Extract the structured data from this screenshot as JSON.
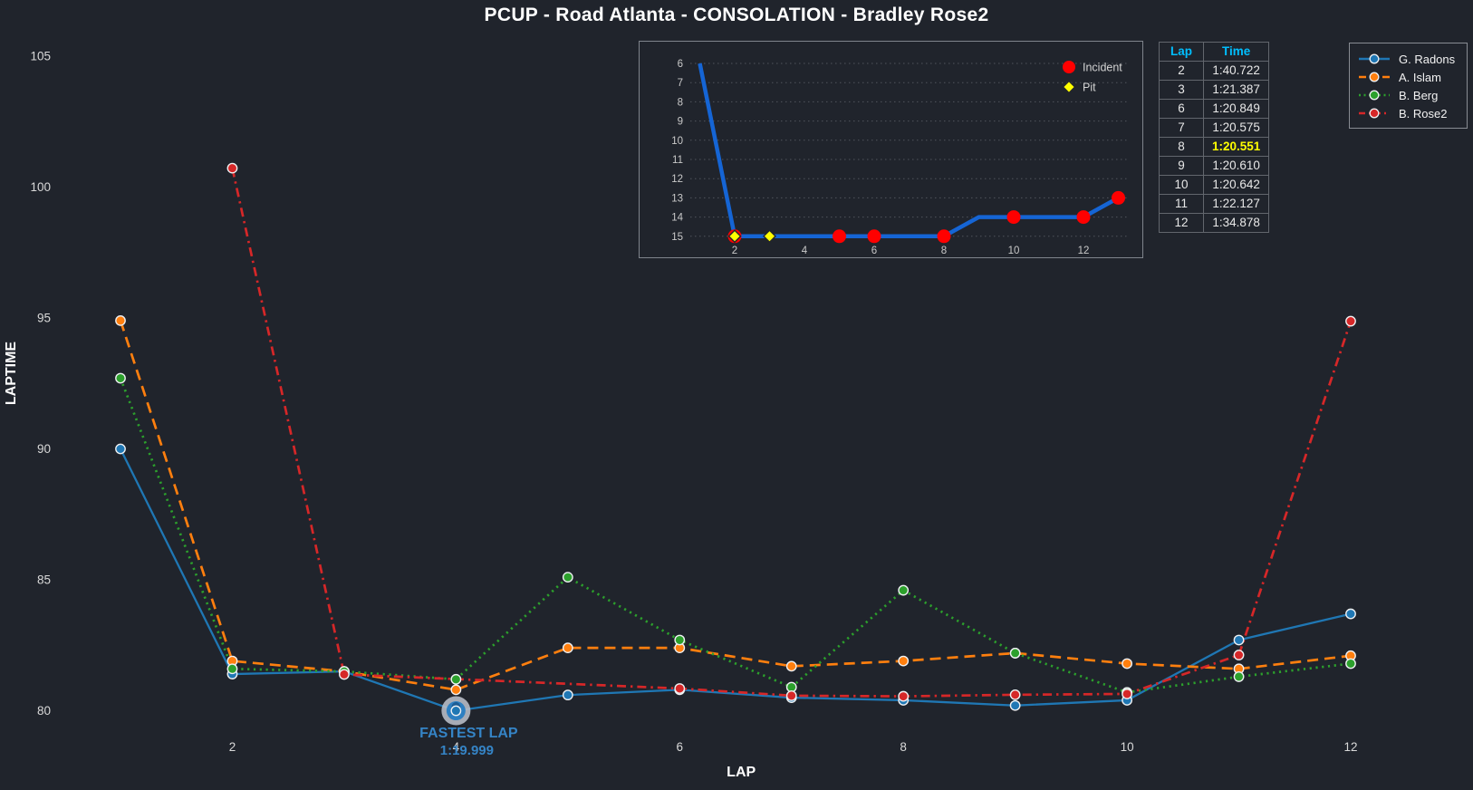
{
  "title": "PCUP - Road Atlanta - CONSOLATION - Bradley Rose2",
  "colors": {
    "background": "#20242c",
    "tick_text": "#d9d9d9",
    "incident": "#ff0000",
    "pit": "#ffff00",
    "table_header": "#00bfff",
    "fastest_highlight": "#ffff00",
    "annotation_blue": "#3584c6"
  },
  "chart_data": [
    {
      "id": "main_laptime_chart",
      "type": "line",
      "title": "PCUP - Road Atlanta - CONSOLATION - Bradley Rose2",
      "xlabel": "LAP",
      "ylabel": "LAPTIME",
      "xticks": [
        2,
        4,
        6,
        8,
        10,
        12
      ],
      "yticks": [
        80,
        85,
        90,
        95,
        100,
        105
      ],
      "xlim": [
        0.45,
        12.6
      ],
      "ylim": [
        79,
        106.2
      ],
      "grid": false,
      "legend_position": "outside-top-right",
      "series": [
        {
          "name": "G. Radons",
          "color": "#1f77b4",
          "line_style": "solid",
          "x": [
            1,
            2,
            3,
            4,
            5,
            6,
            7,
            8,
            9,
            10,
            11,
            12
          ],
          "values": [
            90.0,
            81.4,
            81.5,
            79.999,
            80.6,
            80.8,
            80.5,
            80.4,
            80.2,
            80.4,
            82.7,
            83.7
          ]
        },
        {
          "name": "A. Islam",
          "color": "#ff7f0e",
          "line_style": "dashed",
          "x": [
            1,
            2,
            3,
            4,
            5,
            6,
            7,
            8,
            9,
            10,
            11,
            12
          ],
          "values": [
            94.9,
            81.9,
            81.5,
            80.8,
            82.4,
            82.4,
            81.7,
            81.9,
            82.2,
            81.8,
            81.6,
            82.1
          ]
        },
        {
          "name": "B. Berg",
          "color": "#2ca02c",
          "line_style": "dotted",
          "x": [
            1,
            2,
            3,
            4,
            5,
            6,
            7,
            8,
            9,
            10,
            11,
            12
          ],
          "values": [
            92.7,
            81.6,
            81.5,
            81.2,
            85.1,
            82.7,
            80.9,
            84.6,
            82.2,
            80.7,
            81.3,
            81.8
          ]
        },
        {
          "name": "B. Rose2",
          "color": "#d62728",
          "line_style": "dashdot",
          "x": [
            2,
            3,
            6,
            7,
            8,
            9,
            10,
            11,
            12
          ],
          "values": [
            100.722,
            81.387,
            80.849,
            80.575,
            80.551,
            80.61,
            80.642,
            82.127,
            94.878
          ]
        }
      ],
      "annotation": {
        "line1": "FASTEST LAP",
        "line2": "1:19.999",
        "x": 4,
        "y": 79.999,
        "color": "#3584c6"
      }
    },
    {
      "id": "position_inset_chart",
      "type": "line",
      "xticks": [
        2,
        4,
        6,
        8,
        10,
        12
      ],
      "yticks": [
        6,
        7,
        8,
        9,
        10,
        11,
        12,
        13,
        14,
        15
      ],
      "y_inverted": true,
      "grid": "horizontal-dotted",
      "series": [
        {
          "name": "Position",
          "color": "#1565d5",
          "x": [
            1,
            2,
            3,
            4,
            5,
            6,
            7,
            8,
            9,
            10,
            11,
            12,
            13
          ],
          "values": [
            6,
            15,
            15,
            15,
            15,
            15,
            15,
            15,
            14,
            14,
            14,
            14,
            13
          ]
        }
      ],
      "event_markers": {
        "incident": {
          "label": "Incident",
          "color": "#ff0000",
          "shape": "circle",
          "laps": [
            2,
            5,
            6,
            8,
            10,
            12,
            13
          ]
        },
        "pit": {
          "label": "Pit",
          "color": "#ffff00",
          "shape": "diamond",
          "laps": [
            2,
            3
          ]
        }
      }
    }
  ],
  "lap_table": {
    "headers": [
      "Lap",
      "Time"
    ],
    "rows": [
      {
        "lap": "2",
        "time": "1:40.722"
      },
      {
        "lap": "3",
        "time": "1:21.387"
      },
      {
        "lap": "6",
        "time": "1:20.849"
      },
      {
        "lap": "7",
        "time": "1:20.575"
      },
      {
        "lap": "8",
        "time": "1:20.551"
      },
      {
        "lap": "9",
        "time": "1:20.610"
      },
      {
        "lap": "10",
        "time": "1:20.642"
      },
      {
        "lap": "11",
        "time": "1:22.127"
      },
      {
        "lap": "12",
        "time": "1:34.878"
      }
    ],
    "fastest_row": 4
  }
}
